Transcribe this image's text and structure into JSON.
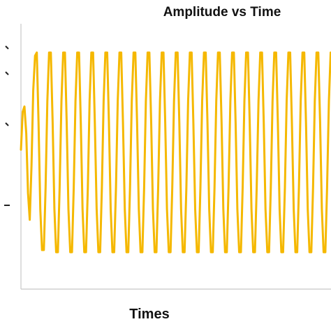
{
  "chart_data": {
    "type": "line",
    "title": "Amplitude vs Time",
    "xlabel": "Times",
    "ylabel": "",
    "grid": false,
    "legend": "none",
    "x_ticks_labeled": false,
    "y_ticks_labeled": false,
    "series": [
      {
        "color": "#F5B800",
        "values": [
          0.05,
          0.4,
          0.45,
          0.2,
          -0.35,
          -0.6,
          -0.1,
          0.6,
          0.92,
          0.95,
          0.3,
          -0.5,
          -0.88,
          -0.88,
          -0.3,
          0.5,
          0.95,
          0.95,
          0.3,
          -0.5,
          -0.9,
          -0.9,
          -0.3,
          0.5,
          0.95,
          0.95,
          0.3,
          -0.5,
          -0.9,
          -0.9,
          -0.3,
          0.5,
          0.95,
          0.95,
          0.3,
          -0.5,
          -0.9,
          -0.9,
          -0.3,
          0.5,
          0.95,
          0.95,
          0.3,
          -0.5,
          -0.9,
          -0.9,
          -0.3,
          0.5,
          0.95,
          0.95,
          0.3,
          -0.5,
          -0.9,
          -0.9,
          -0.3,
          0.5,
          0.95,
          0.95,
          0.3,
          -0.5,
          -0.9,
          -0.9,
          -0.3,
          0.5,
          0.95,
          0.95,
          0.3,
          -0.5,
          -0.9,
          -0.9,
          -0.3,
          0.5,
          0.95,
          0.95,
          0.3,
          -0.5,
          -0.9,
          -0.9,
          -0.3,
          0.5,
          0.95,
          0.95,
          0.3,
          -0.5,
          -0.9,
          -0.9,
          -0.3,
          0.5,
          0.95,
          0.95,
          0.3,
          -0.5,
          -0.9,
          -0.9,
          -0.3,
          0.5,
          0.95,
          0.95,
          0.3,
          -0.5,
          -0.9,
          -0.9,
          -0.3,
          0.5,
          0.95,
          0.95,
          0.3,
          -0.5,
          -0.9,
          -0.9,
          -0.3,
          0.5,
          0.95,
          0.95,
          0.3,
          -0.5,
          -0.9,
          -0.9,
          -0.3,
          0.5,
          0.95,
          0.95,
          0.3,
          -0.5,
          -0.9,
          -0.9,
          -0.3,
          0.5,
          0.95,
          0.95,
          0.3,
          -0.5,
          -0.9,
          -0.9,
          -0.3,
          0.5,
          0.95,
          0.95,
          0.3,
          -0.5,
          -0.9,
          -0.9,
          -0.3,
          0.5,
          0.95,
          0.95,
          0.3,
          -0.5,
          -0.9,
          -0.9,
          -0.3,
          0.5,
          0.95,
          0.95,
          0.3,
          -0.5,
          -0.9,
          -0.9,
          -0.3,
          0.5,
          0.95,
          0.95,
          0.3,
          -0.5,
          -0.9,
          -0.9,
          -0.3,
          0.5,
          0.95,
          0.95,
          0.3,
          -0.5,
          -0.9,
          -0.9,
          -0.3,
          0.5,
          0.95,
          0.95
        ]
      }
    ],
    "ylim": [
      -1.1,
      1.1
    ]
  }
}
